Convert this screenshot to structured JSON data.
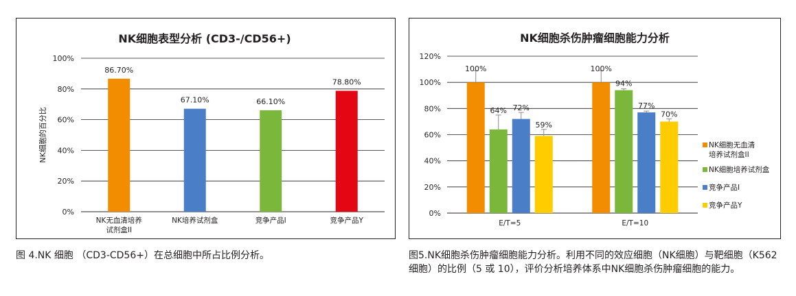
{
  "chart_data": [
    {
      "type": "bar",
      "title": "NK细胞表型分析 (CD3-/CD56+)",
      "ylabel": "NK细胞的百分比",
      "categories": [
        [
          "NK无血清培养",
          "试剂盒II"
        ],
        [
          "NK培养试剂盒"
        ],
        [
          "竞争产品I"
        ],
        [
          "竞争产品Y"
        ]
      ],
      "values": [
        86.7,
        67.1,
        66.1,
        78.8
      ],
      "value_labels": [
        "86.70%",
        "67.10%",
        "66.10%",
        "78.80%"
      ],
      "colors": [
        "#f28c00",
        "#4a7ec6",
        "#7bb73a",
        "#e30613"
      ],
      "ylim": [
        0,
        100
      ],
      "yticks": [
        0,
        20,
        40,
        60,
        80,
        100
      ],
      "ytick_labels": [
        "0%",
        "20%",
        "40%",
        "60%",
        "80%",
        "100%"
      ],
      "grid": true
    },
    {
      "type": "bar",
      "title": "NK细胞杀伤肿瘤细胞能力分析",
      "categories": [
        "E/T=5",
        "E/T=10"
      ],
      "series": [
        {
          "name": "NK细胞无血清培养试剂盒II",
          "legend_lines": [
            "NK细胞无血清",
            "培养试剂盒II"
          ],
          "color": "#f28c00",
          "values": [
            100,
            100
          ],
          "errors": [
            9,
            9
          ],
          "labels": [
            "100%",
            "100%"
          ]
        },
        {
          "name": "NK细胞培养试剂盒",
          "legend_lines": [
            "NK细胞培养试剂盒"
          ],
          "color": "#7bb73a",
          "values": [
            64,
            94
          ],
          "errors": [
            11,
            1
          ],
          "labels": [
            "64%",
            "94%"
          ]
        },
        {
          "name": "竞争产品I",
          "legend_lines": [
            "竞争产品I"
          ],
          "color": "#4a7ec6",
          "values": [
            72,
            77
          ],
          "errors": [
            5,
            1
          ],
          "labels": [
            "72%",
            "77%"
          ]
        },
        {
          "name": "竞争产品Y",
          "legend_lines": [
            "竞争产品Y"
          ],
          "color": "#ffcc00",
          "values": [
            59,
            70
          ],
          "errors": [
            5,
            2
          ],
          "labels": [
            "59%",
            "70%"
          ]
        }
      ],
      "ylim": [
        0,
        120
      ],
      "yticks": [
        0,
        20,
        40,
        60,
        80,
        100,
        120
      ],
      "ytick_labels": [
        "0%",
        "20%",
        "40%",
        "60%",
        "80%",
        "100%",
        "120%"
      ],
      "legend_position": "right",
      "grid": true
    }
  ],
  "captions": {
    "fig4": "图 4.NK 细胞 （CD3-CD56+）在总细胞中所占比例分析。",
    "fig5": "图5.NK细胞杀伤肿瘤细胞能力分析。利用不同的效应细胞（NK细胞）与靶细胞（K562细胞）的比例（5 或 10），评价分析培养体系中NK细胞杀伤肿瘤细胞的能力。"
  }
}
